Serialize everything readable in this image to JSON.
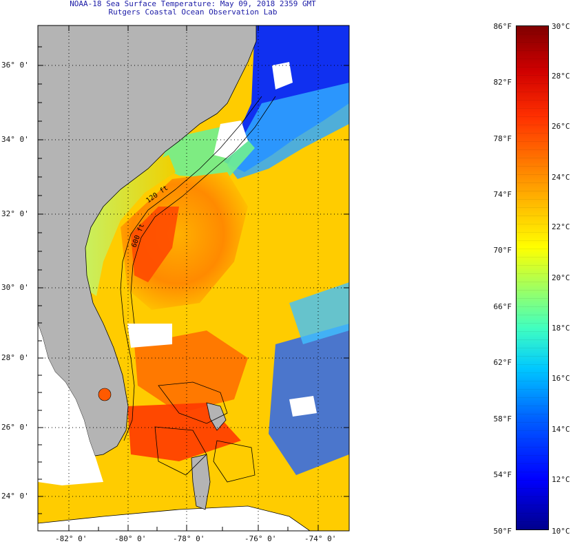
{
  "header": {
    "title": "NOAA-18 Sea Surface Temperature:  May 09, 2018 2359 GMT",
    "subtitle": "Rutgers Coastal Ocean Observation Lab"
  },
  "map": {
    "lat_labels": [
      "36° 0'",
      "34° 0'",
      "32° 0'",
      "30° 0'",
      "28° 0'",
      "26° 0'",
      "24° 0'"
    ],
    "lon_labels": [
      "-82° 0'",
      "-80° 0'",
      "-78° 0'",
      "-76° 0'",
      "-74° 0'"
    ],
    "isobath_labels": [
      "120 ft",
      "600 ft"
    ],
    "colors": {
      "land": "#b4b4b4",
      "grid": "#000000",
      "title": "#1a1aa6"
    }
  },
  "colorbar": {
    "fahrenheit_labels": [
      "86°F",
      "82°F",
      "78°F",
      "74°F",
      "70°F",
      "66°F",
      "62°F",
      "58°F",
      "54°F",
      "50°F"
    ],
    "celsius_labels": [
      "30°C",
      "28°C",
      "26°C",
      "24°C",
      "22°C",
      "20°C",
      "18°C",
      "16°C",
      "14°C",
      "12°C",
      "10°C"
    ],
    "min_f": 50,
    "max_f": 86,
    "min_c": 10,
    "max_c": 30
  }
}
